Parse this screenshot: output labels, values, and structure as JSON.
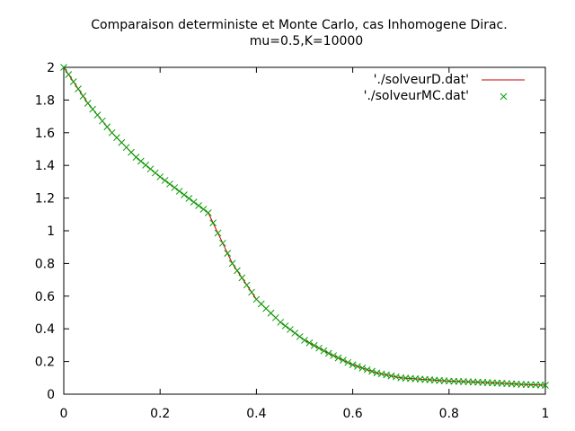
{
  "chart_data": {
    "type": "line",
    "title_line1": "Comparaison deterministe et Monte Carlo, cas Inhomogene Dirac.",
    "title_line2": "mu=0.5,K=10000",
    "xlabel": "",
    "ylabel": "",
    "xlim": [
      0,
      1
    ],
    "ylim": [
      0,
      2
    ],
    "x_ticks": [
      0,
      0.2,
      0.4,
      0.6,
      0.8,
      1
    ],
    "x_tick_labels": [
      "0",
      "0.2",
      "0.4",
      "0.6",
      "0.8",
      "1"
    ],
    "y_ticks": [
      0,
      0.2,
      0.4,
      0.6,
      0.8,
      1,
      1.2,
      1.4,
      1.6,
      1.8,
      2
    ],
    "y_tick_labels": [
      "0",
      "0.2",
      "0.4",
      "0.6",
      "0.8",
      "1",
      "1.2",
      "1.4",
      "1.6",
      "1.8",
      "2"
    ],
    "grid": false,
    "legend_position": "top-right",
    "series": [
      {
        "name": "'./solveurD.dat'",
        "style": "line",
        "color": "#cc0000",
        "x": [
          0,
          0.05,
          0.1,
          0.15,
          0.2,
          0.25,
          0.3,
          0.35,
          0.4,
          0.45,
          0.5,
          0.55,
          0.6,
          0.65,
          0.7,
          0.75,
          0.8,
          0.85,
          0.9,
          0.95,
          1.0
        ],
        "y": [
          2.0,
          1.78,
          1.6,
          1.45,
          1.33,
          1.22,
          1.11,
          0.8,
          0.58,
          0.44,
          0.33,
          0.25,
          0.18,
          0.13,
          0.1,
          0.09,
          0.08,
          0.075,
          0.068,
          0.06,
          0.055
        ]
      },
      {
        "name": "'./solveurMC.dat'",
        "style": "markers",
        "marker": "x",
        "color": "#00a000",
        "x": [
          0,
          0.05,
          0.1,
          0.15,
          0.2,
          0.25,
          0.3,
          0.35,
          0.4,
          0.45,
          0.5,
          0.55,
          0.6,
          0.65,
          0.7,
          0.75,
          0.8,
          0.85,
          0.9,
          0.95,
          1.0
        ],
        "y": [
          2.0,
          1.78,
          1.6,
          1.45,
          1.33,
          1.22,
          1.11,
          0.8,
          0.58,
          0.44,
          0.33,
          0.25,
          0.18,
          0.13,
          0.1,
          0.09,
          0.08,
          0.075,
          0.068,
          0.06,
          0.055
        ]
      }
    ]
  }
}
